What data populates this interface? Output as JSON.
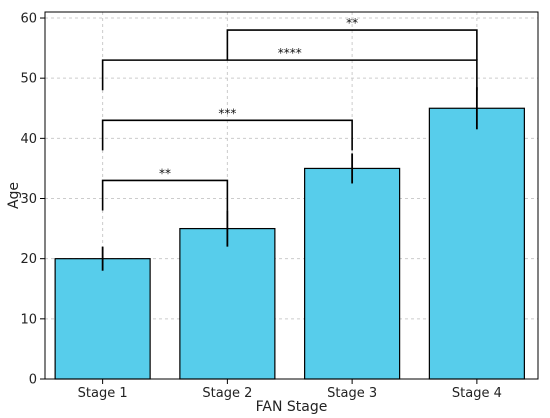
{
  "chart_data": {
    "type": "bar",
    "title": "",
    "xlabel": "FAN Stage",
    "ylabel": "Age",
    "categories": [
      "Stage 1",
      "Stage 2",
      "Stage 3",
      "Stage 4"
    ],
    "values": [
      20,
      25,
      35,
      45
    ],
    "error": [
      2,
      3,
      2.5,
      3.5
    ],
    "ylim": [
      0,
      61
    ],
    "yticks": [
      0,
      10,
      20,
      30,
      40,
      50,
      60
    ],
    "grid": true,
    "colors": {
      "bar": "#57cdeb",
      "edge": "#000000",
      "grid": "#cccccc"
    },
    "significance": [
      {
        "from": 0,
        "to": 1,
        "y": 33,
        "label": "**"
      },
      {
        "from": 0,
        "to": 2,
        "y": 43,
        "label": "***"
      },
      {
        "from": 0,
        "to": 3,
        "y": 53,
        "label": "****"
      },
      {
        "from": 1,
        "to": 3,
        "y": 58,
        "label": "**"
      }
    ]
  }
}
